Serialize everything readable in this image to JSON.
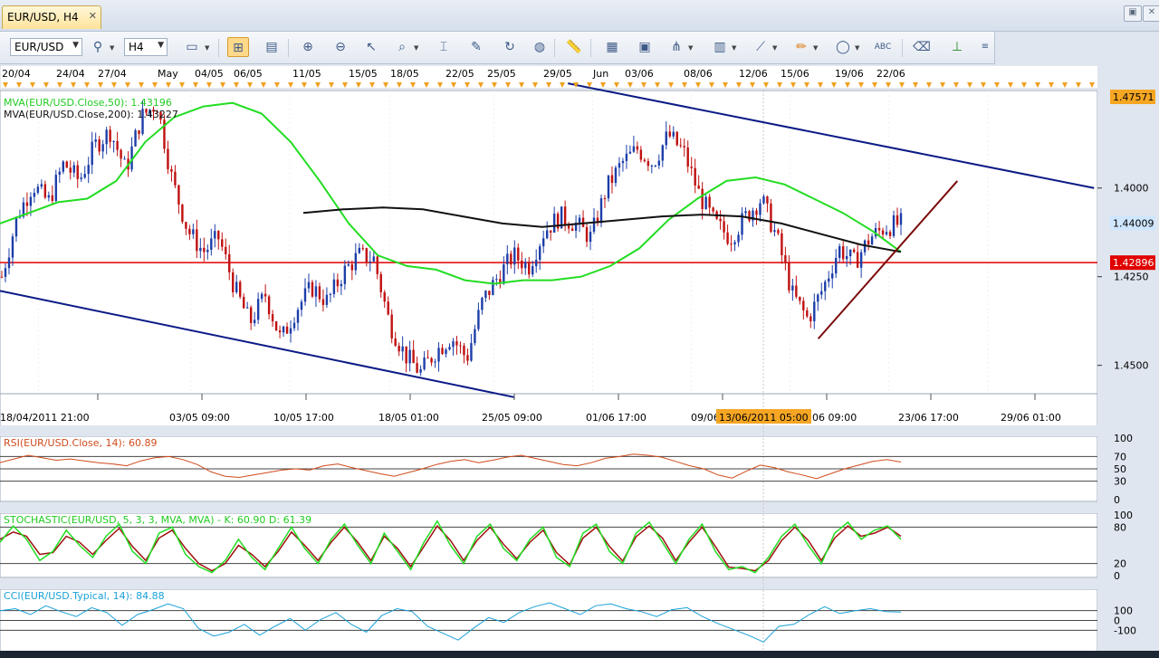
{
  "tab": {
    "label": "EUR/USD, H4",
    "close": "✕"
  },
  "window_buttons": [
    "restore-icon",
    "close-icon"
  ],
  "toolbar": {
    "symbol": "EUR/USD",
    "timeframe": "H4"
  },
  "chart_data": {
    "type": "candlestick",
    "instrument": "EUR/USD",
    "timeframe": "H4",
    "price_range": [
      1.392,
      1.4775
    ],
    "y_ticks": [
      1.4,
      1.425,
      1.45
    ],
    "top_date_labels": [
      "20/04",
      "24/04",
      "27/04",
      "May",
      "04/05",
      "06/05",
      "11/05",
      "15/05",
      "18/05",
      "22/05",
      "25/05",
      "29/05",
      "Jun",
      "03/06",
      "08/06",
      "12/06",
      "15/06",
      "19/06",
      "22/06"
    ],
    "bottom_time_labels": [
      "18/04/2011 21:00",
      "03/05 09:00",
      "10/05 17:00",
      "18/05 01:00",
      "25/05 09:00",
      "01/06 17:00",
      "09/06",
      "13/06/2011 05:00",
      "06 09:00",
      "23/06 17:00",
      "29/06 01:00"
    ],
    "cursor_date": "13/06/2011 05:00",
    "price_tags": [
      {
        "label": "1.47571",
        "value": 1.47571,
        "color": "#f5a623"
      },
      {
        "label": "1.44009",
        "value": 1.44009,
        "color": "#cfe6ff"
      },
      {
        "label": "1.42896",
        "value": 1.42896,
        "color": "#e00000"
      }
    ],
    "close_path": [
      1.425,
      1.442,
      1.451,
      1.446,
      1.457,
      1.452,
      1.462,
      1.466,
      1.455,
      1.47,
      1.474,
      1.452,
      1.438,
      1.432,
      1.436,
      1.422,
      1.412,
      1.42,
      1.407,
      1.416,
      1.422,
      1.418,
      1.426,
      1.431,
      1.43,
      1.412,
      1.403,
      1.398,
      1.404,
      1.408,
      1.402,
      1.418,
      1.425,
      1.431,
      1.428,
      1.438,
      1.442,
      1.44,
      1.436,
      1.45,
      1.457,
      1.461,
      1.457,
      1.465,
      1.46,
      1.448,
      1.44,
      1.436,
      1.442,
      1.447,
      1.436,
      1.42,
      1.413,
      1.422,
      1.433,
      1.429,
      1.436,
      1.439,
      1.44
    ],
    "horizontal_line": {
      "value": 1.42896,
      "color": "#e00000"
    },
    "mva50": {
      "label": "MVA(EUR/USD.Close,50): 1.43196",
      "color": "#22dd22",
      "values": [
        1.44,
        1.443,
        1.446,
        1.447,
        1.452,
        1.463,
        1.47,
        1.473,
        1.474,
        1.471,
        1.463,
        1.452,
        1.44,
        1.431,
        1.428,
        1.427,
        1.424,
        1.423,
        1.424,
        1.424,
        1.425,
        1.428,
        1.433,
        1.441,
        1.447,
        1.452,
        1.453,
        1.451,
        1.447,
        1.443,
        1.438,
        1.432
      ]
    },
    "mva200": {
      "label": "MVA(EUR/USD.Close,200): 1.43227",
      "color": "#111111",
      "values": [
        1.443,
        1.444,
        1.4445,
        1.444,
        1.442,
        1.44,
        1.439,
        1.44,
        1.441,
        1.442,
        1.4425,
        1.442,
        1.44,
        1.437,
        1.434,
        1.432
      ]
    },
    "trendlines": [
      {
        "name": "upper-channel",
        "color": "#0b1a86",
        "from": [
          0.49,
          1.4795
        ],
        "to": [
          0.944,
          1.45
        ]
      },
      {
        "name": "lower-channel",
        "color": "#0b1a86",
        "from": [
          0.0,
          1.421
        ],
        "to": [
          0.444,
          1.391
        ]
      },
      {
        "name": "support",
        "color": "#7a0a0a",
        "from": [
          0.706,
          1.4075
        ],
        "to": [
          0.826,
          1.452
        ]
      }
    ],
    "rsi": {
      "label": "RSI(EUR/USD.Close, 14): 60.89",
      "color": "#d04b1c",
      "levels": [
        0,
        30,
        50,
        70,
        100
      ],
      "values": [
        60,
        66,
        72,
        68,
        64,
        66,
        63,
        60,
        58,
        55,
        63,
        68,
        70,
        65,
        57,
        45,
        38,
        36,
        40,
        44,
        48,
        50,
        48,
        55,
        58,
        52,
        47,
        42,
        38,
        44,
        50,
        57,
        62,
        65,
        60,
        64,
        69,
        72,
        67,
        62,
        57,
        55,
        60,
        67,
        70,
        74,
        72,
        69,
        62,
        55,
        50,
        40,
        35,
        46,
        56,
        52,
        45,
        40,
        34,
        42,
        50,
        56,
        62,
        65,
        61
      ]
    },
    "stochastic": {
      "label": "STOCHASTIC(EUR/USD, 5, 3, 3, MVA, MVA) -  K: 60.90   D: 61.39",
      "k_color": "#22dd22",
      "d_color": "#a01010",
      "levels": [
        0,
        20,
        80,
        100
      ],
      "k": [
        55,
        82,
        60,
        25,
        40,
        75,
        50,
        30,
        65,
        85,
        40,
        20,
        70,
        80,
        35,
        15,
        5,
        25,
        60,
        30,
        10,
        45,
        80,
        45,
        20,
        60,
        85,
        50,
        20,
        70,
        40,
        10,
        55,
        90,
        50,
        20,
        65,
        85,
        45,
        25,
        60,
        80,
        30,
        15,
        70,
        85,
        40,
        20,
        70,
        88,
        55,
        20,
        60,
        85,
        40,
        10,
        15,
        5,
        30,
        65,
        85,
        50,
        20,
        70,
        88,
        60,
        75,
        82,
        60
      ],
      "d": [
        60,
        72,
        65,
        35,
        38,
        65,
        55,
        35,
        58,
        78,
        48,
        25,
        62,
        75,
        45,
        20,
        8,
        20,
        50,
        35,
        15,
        40,
        72,
        50,
        25,
        55,
        80,
        55,
        25,
        65,
        45,
        15,
        48,
        82,
        58,
        25,
        58,
        80,
        52,
        28,
        55,
        75,
        38,
        18,
        62,
        80,
        48,
        24,
        64,
        82,
        62,
        25,
        55,
        80,
        48,
        14,
        12,
        8,
        25,
        58,
        80,
        58,
        25,
        62,
        82,
        65,
        70,
        80,
        65
      ]
    },
    "cci": {
      "label": "CCI(EUR/USD.Typical, 14): 84.88",
      "color": "#1aa1d8",
      "levels": [
        -100,
        0,
        100
      ],
      "values": [
        100,
        120,
        60,
        150,
        90,
        40,
        130,
        80,
        -50,
        60,
        110,
        170,
        120,
        -80,
        -160,
        -120,
        -40,
        -150,
        -60,
        20,
        -100,
        10,
        80,
        -40,
        -120,
        50,
        120,
        90,
        -60,
        -130,
        -200,
        -80,
        30,
        -20,
        80,
        140,
        180,
        120,
        60,
        150,
        170,
        120,
        90,
        40,
        110,
        130,
        40,
        -30,
        -90,
        -150,
        -220,
        -60,
        -40,
        60,
        140,
        70,
        100,
        120,
        90,
        85
      ]
    }
  },
  "panel_axes": {
    "rsi_ticks": [
      "100",
      "70",
      "50",
      "30",
      "0"
    ],
    "stoch_ticks": [
      "100",
      "80",
      "20",
      "0"
    ],
    "cci_ticks": [
      "100",
      "0",
      "-100"
    ],
    "price_ticks": [
      "1.4500",
      "1.4250",
      "1.4000"
    ]
  }
}
